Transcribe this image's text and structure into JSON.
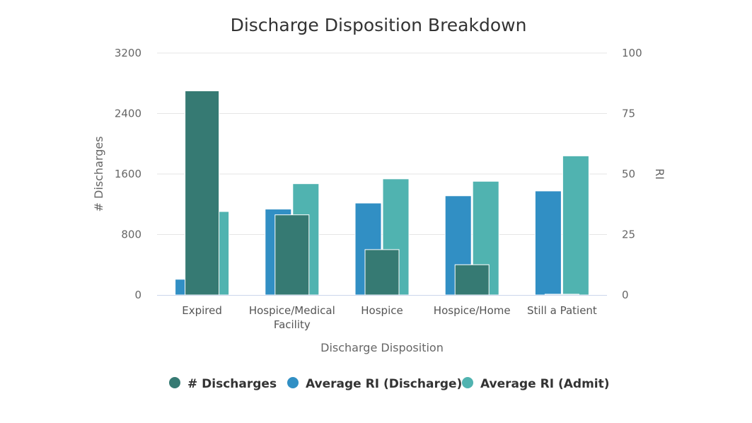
{
  "chart_data": {
    "type": "bar",
    "title": "Discharge Disposition Breakdown",
    "xlabel": "Discharge Disposition",
    "ylabel_left": "# Discharges",
    "ylabel_right": "RI",
    "categories": [
      [
        "Expired"
      ],
      [
        "Hospice/Medical",
        "Facility"
      ],
      [
        "Hospice"
      ],
      [
        "Hospice/Home"
      ],
      [
        "Still a Patient"
      ]
    ],
    "ylim_left": [
      0,
      3200
    ],
    "ylim_right": [
      0,
      100
    ],
    "yticks_left": [
      "0",
      "800",
      "1600",
      "2400",
      "3200"
    ],
    "yticks_right": [
      "0",
      "25",
      "50",
      "75",
      "100"
    ],
    "grid": true,
    "legend_position": "bottom-center",
    "series": [
      {
        "name": "# Discharges",
        "axis": "left",
        "color": "#367a73",
        "values": [
          2700,
          1060,
          600,
          400,
          10
        ]
      },
      {
        "name": "Average RI (Discharge)",
        "axis": "right",
        "color": "#318fc4",
        "values": [
          6.5,
          35.5,
          38,
          41,
          43
        ]
      },
      {
        "name": "Average RI (Admit)",
        "axis": "right",
        "color": "#50b3b0",
        "values": [
          34.5,
          46,
          48,
          47,
          57.5
        ]
      }
    ]
  }
}
